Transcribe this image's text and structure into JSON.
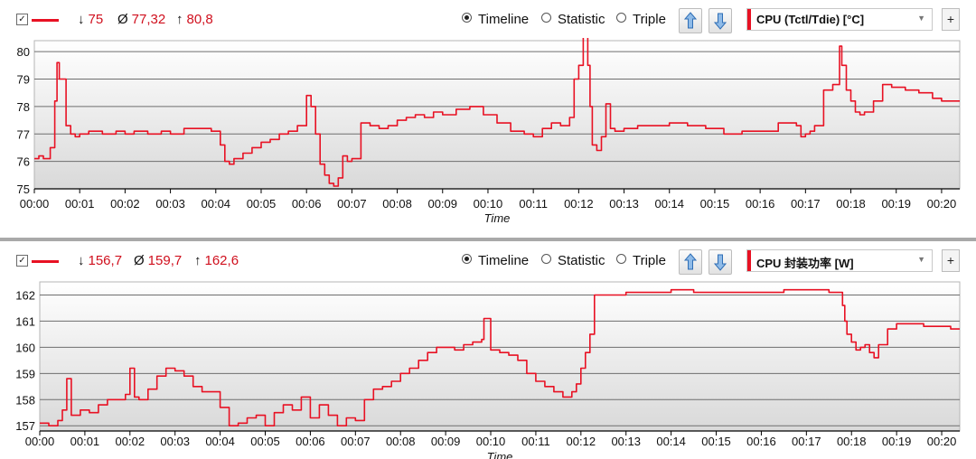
{
  "colors": {
    "series": "#e81123",
    "grid": "#6e6e6e",
    "axis": "#000000"
  },
  "panels": [
    {
      "stats": {
        "min_symbol": "↓",
        "min": "75",
        "avg_symbol": "Ø",
        "avg": "77,32",
        "max_symbol": "↑",
        "max": "80,8"
      },
      "radios": [
        "Timeline",
        "Statistic",
        "Triple"
      ],
      "selected_radio": "Timeline",
      "sensor_select": "CPU (Tctl/Tdie) [°C]",
      "add_label": "+"
    },
    {
      "stats": {
        "min_symbol": "↓",
        "min": "156,7",
        "avg_symbol": "Ø",
        "avg": "159,7",
        "max_symbol": "↑",
        "max": "162,6"
      },
      "radios": [
        "Timeline",
        "Statistic",
        "Triple"
      ],
      "selected_radio": "Timeline",
      "sensor_select": "CPU 封装功率 [W]",
      "add_label": "+"
    }
  ],
  "chart_data": [
    {
      "type": "line",
      "xlabel": "Time",
      "ylabel": "",
      "x_ticks": [
        "00:00",
        "00:01",
        "00:02",
        "00:03",
        "00:04",
        "00:05",
        "00:06",
        "00:07",
        "00:08",
        "00:09",
        "00:10",
        "00:11",
        "00:12",
        "00:13",
        "00:14",
        "00:15",
        "00:16",
        "00:17",
        "00:18",
        "00:19",
        "00:20"
      ],
      "y_ticks": [
        75,
        76,
        77,
        78,
        79,
        80
      ],
      "ylim": [
        75,
        80.4
      ],
      "xlim_minutes": [
        0,
        20.4
      ],
      "grid": true,
      "series": [
        {
          "x": [
            0,
            0.1,
            0.2,
            0.35,
            0.45,
            0.5,
            0.55,
            0.7,
            0.8,
            0.9,
            1.0,
            1.2,
            1.5,
            1.8,
            2.0,
            2.2,
            2.5,
            2.8,
            3.0,
            3.3,
            3.6,
            3.9,
            4.1,
            4.2,
            4.3,
            4.4,
            4.6,
            4.8,
            5.0,
            5.2,
            5.4,
            5.6,
            5.8,
            6.0,
            6.1,
            6.2,
            6.3,
            6.4,
            6.5,
            6.6,
            6.7,
            6.8,
            6.9,
            7.0,
            7.2,
            7.4,
            7.6,
            7.8,
            8.0,
            8.2,
            8.4,
            8.6,
            8.8,
            9.0,
            9.3,
            9.6,
            9.9,
            10.2,
            10.5,
            10.8,
            11.0,
            11.2,
            11.4,
            11.6,
            11.8,
            11.9,
            12.0,
            12.1,
            12.2,
            12.25,
            12.3,
            12.4,
            12.5,
            12.6,
            12.7,
            12.8,
            13.0,
            13.3,
            13.6,
            14.0,
            14.4,
            14.8,
            15.2,
            15.6,
            16.0,
            16.4,
            16.8,
            16.9,
            17.0,
            17.1,
            17.2,
            17.4,
            17.6,
            17.75,
            17.8,
            17.9,
            18.0,
            18.1,
            18.2,
            18.3,
            18.5,
            18.7,
            18.9,
            19.2,
            19.5,
            19.8,
            20.0,
            20.2,
            20.4
          ],
          "y": [
            76.1,
            76.2,
            76.1,
            76.5,
            78.2,
            79.6,
            79.0,
            77.3,
            77.0,
            76.9,
            77.0,
            77.1,
            77.0,
            77.1,
            77.0,
            77.1,
            77.0,
            77.1,
            77.0,
            77.2,
            77.2,
            77.1,
            76.6,
            76.0,
            75.9,
            76.1,
            76.3,
            76.5,
            76.7,
            76.8,
            77.0,
            77.1,
            77.3,
            78.4,
            78.0,
            77.0,
            75.9,
            75.5,
            75.2,
            75.1,
            75.4,
            76.2,
            76.0,
            76.1,
            77.4,
            77.3,
            77.2,
            77.3,
            77.5,
            77.6,
            77.7,
            77.6,
            77.8,
            77.7,
            77.9,
            78.0,
            77.7,
            77.4,
            77.1,
            77.0,
            76.9,
            77.2,
            77.4,
            77.3,
            77.6,
            79.0,
            79.5,
            80.8,
            79.5,
            78.0,
            76.6,
            76.4,
            76.9,
            78.1,
            77.2,
            77.1,
            77.2,
            77.3,
            77.3,
            77.4,
            77.3,
            77.2,
            77.0,
            77.1,
            77.1,
            77.4,
            77.3,
            76.9,
            77.0,
            77.1,
            77.3,
            78.6,
            78.8,
            80.2,
            79.5,
            78.6,
            78.2,
            77.8,
            77.7,
            77.8,
            78.2,
            78.8,
            78.7,
            78.6,
            78.5,
            78.3,
            78.2,
            78.2,
            78.2
          ]
        }
      ]
    },
    {
      "type": "line",
      "xlabel": "Time",
      "ylabel": "",
      "x_ticks": [
        "00:00",
        "00:01",
        "00:02",
        "00:03",
        "00:04",
        "00:05",
        "00:06",
        "00:07",
        "00:08",
        "00:09",
        "00:10",
        "00:11",
        "00:12",
        "00:13",
        "00:14",
        "00:15",
        "00:16",
        "00:17",
        "00:18",
        "00:19",
        "00:20"
      ],
      "y_ticks": [
        157,
        158,
        159,
        160,
        161,
        162
      ],
      "ylim": [
        156.8,
        162.5
      ],
      "xlim_minutes": [
        0,
        20.4
      ],
      "grid": true,
      "series": [
        {
          "x": [
            0,
            0.2,
            0.4,
            0.5,
            0.6,
            0.7,
            0.9,
            1.1,
            1.3,
            1.5,
            1.7,
            1.9,
            2.0,
            2.1,
            2.2,
            2.4,
            2.6,
            2.8,
            3.0,
            3.2,
            3.4,
            3.6,
            3.8,
            4.0,
            4.2,
            4.4,
            4.6,
            4.8,
            5.0,
            5.2,
            5.4,
            5.6,
            5.8,
            6.0,
            6.2,
            6.4,
            6.6,
            6.8,
            7.0,
            7.2,
            7.4,
            7.6,
            7.8,
            8.0,
            8.2,
            8.4,
            8.6,
            8.8,
            9.0,
            9.2,
            9.4,
            9.6,
            9.8,
            9.85,
            10.0,
            10.2,
            10.4,
            10.6,
            10.8,
            11.0,
            11.2,
            11.4,
            11.6,
            11.8,
            11.9,
            12.0,
            12.1,
            12.2,
            12.3,
            12.6,
            13.0,
            13.5,
            14.0,
            14.5,
            15.0,
            15.5,
            16.0,
            16.5,
            17.0,
            17.5,
            17.7,
            17.8,
            17.85,
            17.9,
            18.0,
            18.1,
            18.2,
            18.3,
            18.4,
            18.5,
            18.6,
            18.8,
            19.0,
            19.3,
            19.6,
            19.9,
            20.2,
            20.4
          ],
          "y": [
            157.1,
            157.0,
            157.2,
            157.6,
            158.8,
            157.4,
            157.6,
            157.5,
            157.8,
            158.0,
            158.0,
            158.2,
            159.2,
            158.1,
            158.0,
            158.4,
            158.9,
            159.2,
            159.1,
            158.9,
            158.5,
            158.3,
            158.3,
            157.7,
            157.0,
            157.1,
            157.3,
            157.4,
            157.0,
            157.5,
            157.8,
            157.6,
            158.1,
            157.3,
            157.8,
            157.4,
            157.0,
            157.3,
            157.2,
            158.0,
            158.4,
            158.5,
            158.7,
            159.0,
            159.2,
            159.5,
            159.8,
            160.0,
            160.0,
            159.9,
            160.1,
            160.2,
            160.3,
            161.1,
            159.9,
            159.8,
            159.7,
            159.5,
            159.0,
            158.7,
            158.5,
            158.3,
            158.1,
            158.3,
            158.6,
            159.2,
            159.8,
            160.5,
            162.0,
            162.0,
            162.1,
            162.1,
            162.2,
            162.1,
            162.1,
            162.1,
            162.1,
            162.2,
            162.2,
            162.1,
            162.1,
            161.6,
            161.0,
            160.5,
            160.2,
            159.9,
            160.0,
            160.1,
            159.8,
            159.6,
            160.1,
            160.7,
            160.9,
            160.9,
            160.8,
            160.8,
            160.7,
            160.7
          ]
        }
      ]
    }
  ]
}
